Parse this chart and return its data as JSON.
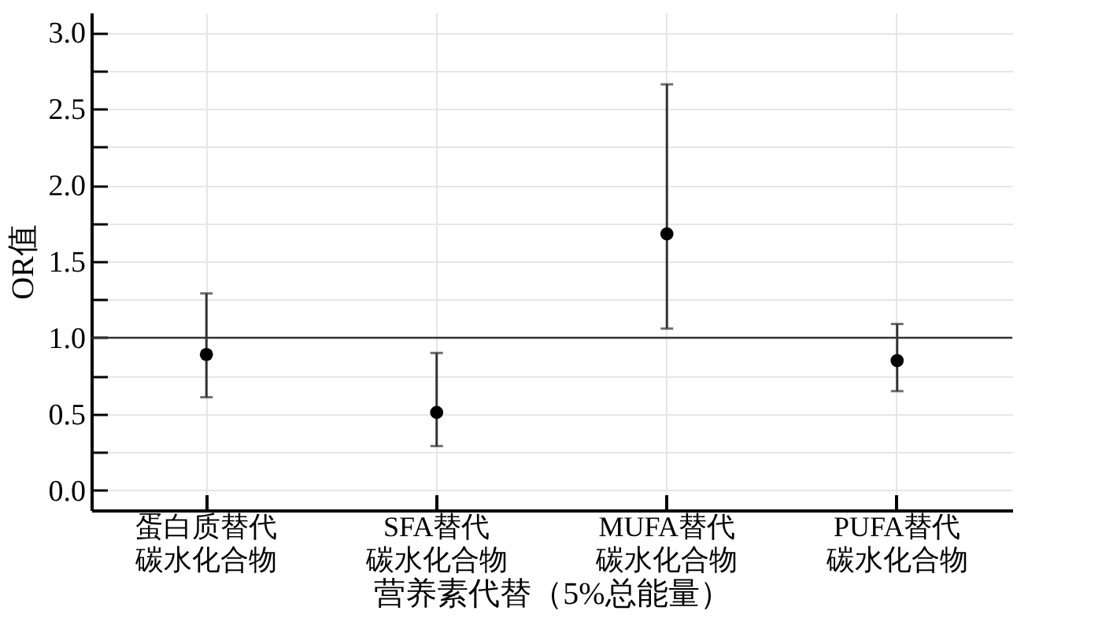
{
  "chart_data": {
    "type": "scatter",
    "xlabel": "营养素代替（5%总能量）",
    "ylabel": "OR值",
    "categories": [
      "蛋白质替代碳水化合物",
      "SFA替代碳水化合物",
      "MUFA替代碳水化合物",
      "PUFA替代碳水化合物"
    ],
    "values": [
      0.89,
      0.51,
      1.68,
      0.85
    ],
    "errors": [
      [
        0.61,
        1.29
      ],
      [
        0.29,
        0.9
      ],
      [
        1.06,
        2.66
      ],
      [
        0.65,
        1.09
      ]
    ],
    "color": "#000000",
    "marker": "circle",
    "ylim": [
      -0.13,
      3.13
    ],
    "yticks": [
      {
        "value": 0,
        "label": "0.0"
      },
      {
        "value": 0.25,
        "label": null
      },
      {
        "value": 0.5,
        "label": "0.5"
      },
      {
        "value": 0.75,
        "label": null
      },
      {
        "value": 1,
        "label": "1.0"
      },
      {
        "value": 1.25,
        "label": null
      },
      {
        "value": 1.5,
        "label": "1.5"
      },
      {
        "value": 1.75,
        "label": null
      },
      {
        "value": 2,
        "label": "2.0"
      },
      {
        "value": 2.25,
        "label": null
      },
      {
        "value": 2.5,
        "label": "2.5"
      },
      {
        "value": 2.75,
        "label": null
      },
      {
        "value": 3,
        "label": "3.0"
      }
    ],
    "ref_lines": [
      {
        "axis": "y",
        "value": 1,
        "color": "#333333"
      }
    ],
    "grid": true
  }
}
